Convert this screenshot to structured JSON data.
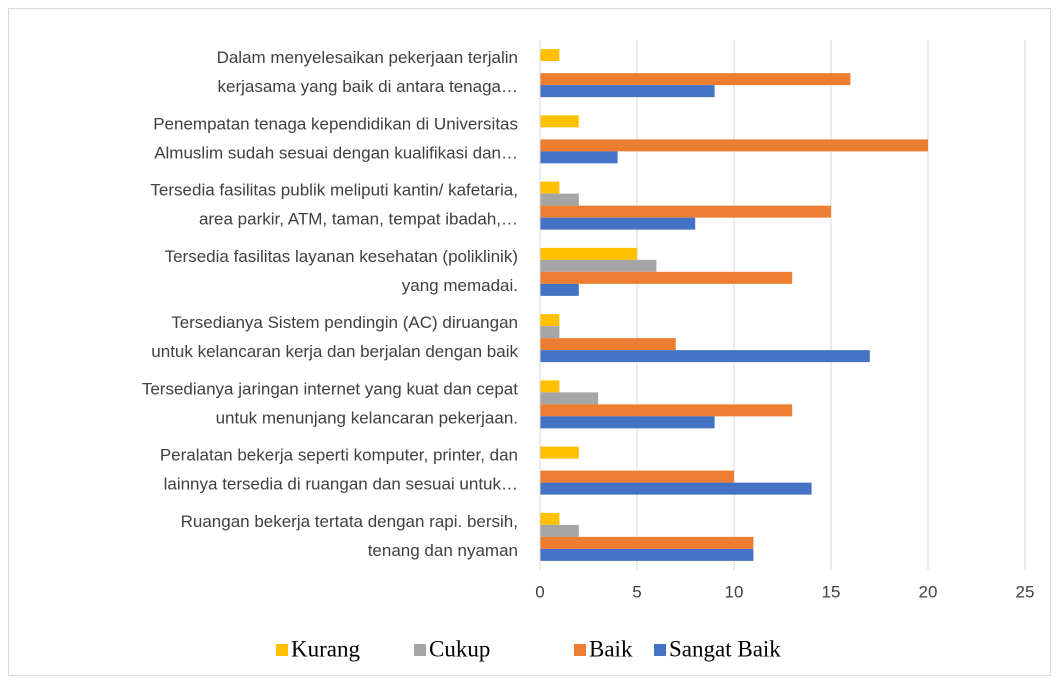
{
  "chart_data": {
    "type": "bar",
    "orientation": "horizontal",
    "categories": [
      [
        "Dalam menyelesaikan pekerjaan terjalin",
        "kerjasama yang baik di antara tenaga…"
      ],
      [
        "Penempatan tenaga kependidikan di Universitas",
        "Almuslim sudah sesuai dengan kualifikasi dan…"
      ],
      [
        "Tersedia fasilitas publik meliputi kantin/ kafetaria,",
        "area parkir, ATM,  taman, tempat ibadah,…"
      ],
      [
        "Tersedia fasilitas layanan kesehatan (poliklinik)",
        "yang memadai."
      ],
      [
        "Tersedianya Sistem pendingin (AC) diruangan",
        "untuk kelancaran kerja dan berjalan dengan baik"
      ],
      [
        "Tersedianya jaringan internet yang kuat dan cepat",
        "untuk menunjang kelancaran pekerjaan."
      ],
      [
        "Peralatan bekerja seperti komputer, printer, dan",
        "lainnya tersedia di ruangan dan sesuai untuk…"
      ],
      [
        "Ruangan bekerja tertata dengan rapi. bersih,",
        "tenang dan nyaman"
      ]
    ],
    "series": [
      {
        "name": "Kurang",
        "color": "#FFC000",
        "values": [
          1,
          2,
          1,
          5,
          1,
          1,
          2,
          1
        ]
      },
      {
        "name": "Cukup",
        "color": "#A5A5A5",
        "values": [
          0,
          0,
          2,
          6,
          1,
          3,
          0,
          2
        ]
      },
      {
        "name": "Baik",
        "color": "#ED7D31",
        "values": [
          16,
          20,
          15,
          13,
          7,
          13,
          10,
          11
        ]
      },
      {
        "name": "Sangat Baik",
        "color": "#4472C4",
        "values": [
          9,
          4,
          8,
          2,
          17,
          9,
          14,
          11
        ]
      }
    ],
    "xlim": [
      0,
      25
    ],
    "xticks": [
      0,
      5,
      10,
      15,
      20,
      25
    ],
    "grid": true,
    "legend": "bottom"
  }
}
